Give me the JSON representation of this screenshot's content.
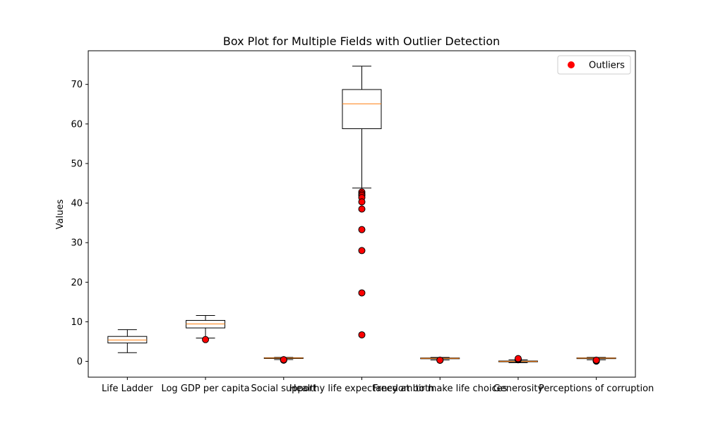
{
  "chart_data": {
    "type": "box",
    "title": "Box Plot for Multiple Fields with Outlier Detection",
    "xlabel": "",
    "ylabel": "Values",
    "ylim": [
      -4,
      78.5
    ],
    "yticks": [
      0,
      10,
      20,
      30,
      40,
      50,
      60,
      70
    ],
    "grid": false,
    "legend": {
      "entries": [
        "Outliers"
      ],
      "placement": "top-right"
    },
    "colors": {
      "box": "#000000",
      "median": "#ff7f0e",
      "outlier_fill": "#ff0000",
      "outlier_edge": "#000000",
      "legend_marker": "#ff0000"
    },
    "categories": [
      "Life Ladder",
      "Log GDP per capita",
      "Social support",
      "Healthy life expectancy at birth",
      "Freedom to make life choices",
      "Generosity",
      "Perceptions of corruption"
    ],
    "boxes": [
      {
        "whisker_low": 2.2,
        "q1": 4.65,
        "median": 5.4,
        "q3": 6.3,
        "whisker_high": 8.0,
        "outliers": []
      },
      {
        "whisker_low": 5.9,
        "q1": 8.45,
        "median": 9.45,
        "q3": 10.35,
        "whisker_high": 11.6,
        "outliers": [
          5.5
        ]
      },
      {
        "whisker_low": 0.45,
        "q1": 0.75,
        "median": 0.83,
        "q3": 0.9,
        "whisker_high": 0.99,
        "outliers": [
          0.3,
          0.35,
          0.4,
          0.42
        ]
      },
      {
        "whisker_low": 43.8,
        "q1": 58.8,
        "median": 65.1,
        "q3": 68.7,
        "whisker_high": 74.6,
        "outliers": [
          42.8,
          42.3,
          41.9,
          41.4,
          40.3,
          38.5,
          33.3,
          28.0,
          17.3,
          6.7
        ]
      },
      {
        "whisker_low": 0.35,
        "q1": 0.66,
        "median": 0.76,
        "q3": 0.85,
        "whisker_high": 0.99,
        "outliers": [
          0.25,
          0.3
        ]
      },
      {
        "whisker_low": -0.34,
        "q1": -0.11,
        "median": -0.02,
        "q3": 0.09,
        "whisker_high": 0.38,
        "outliers": [
          0.4,
          0.5,
          0.6,
          0.7
        ]
      },
      {
        "whisker_low": 0.38,
        "q1": 0.69,
        "median": 0.8,
        "q3": 0.87,
        "whisker_high": 0.98,
        "outliers": [
          0.05,
          0.1,
          0.2,
          0.3
        ]
      }
    ]
  }
}
